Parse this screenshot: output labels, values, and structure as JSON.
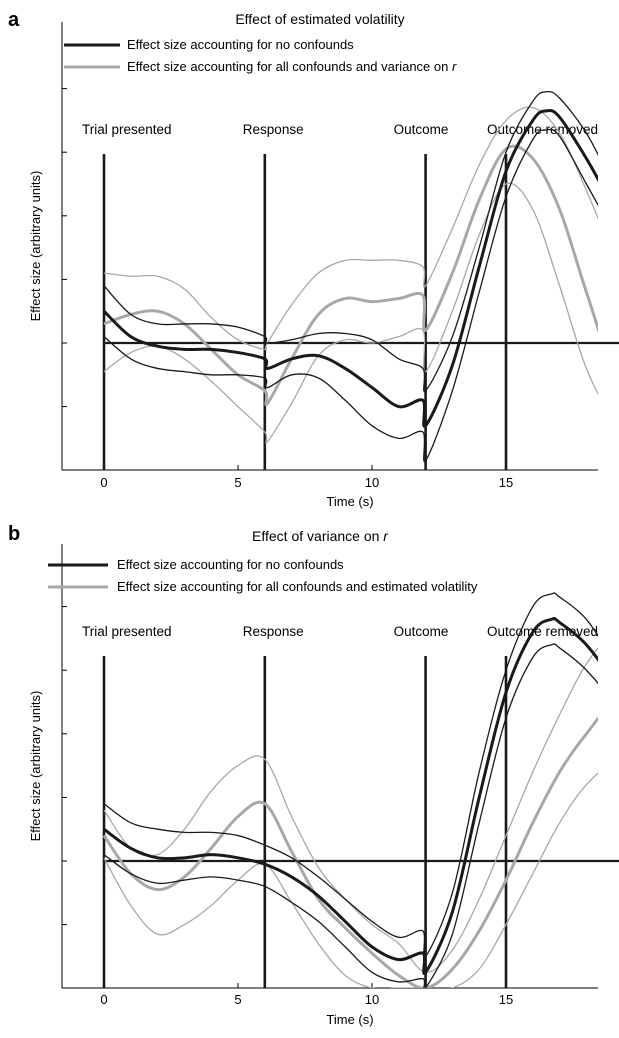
{
  "chart_data": [
    {
      "panel": "a",
      "type": "line",
      "title": "Effect of estimated volatility",
      "xlabel": "Time (s)",
      "ylabel": "Effect size (arbitrary units)",
      "xlim": [
        -1.2,
        23
      ],
      "ylim": [
        -4,
        10
      ],
      "xticks": [
        0,
        5,
        10,
        15,
        20
      ],
      "yticks": [
        -2,
        0,
        2,
        4,
        6,
        8
      ],
      "legend": [
        {
          "label": "Effect size accounting for no confounds",
          "color": "#1a1a1a"
        },
        {
          "label_prefix": "Effect size accounting for all confounds and variance on ",
          "label_var": "r",
          "color": "#a8a8a8"
        }
      ],
      "baseline_y": 0,
      "events": [
        {
          "label": "Trial presented",
          "x": 0
        },
        {
          "label": "Response",
          "x": 6
        },
        {
          "label": "Outcome",
          "x": 12
        },
        {
          "label": "Outcome removed",
          "x": 15
        }
      ],
      "series": [
        {
          "role": "dark-mean",
          "color": "#1a1a1a",
          "x": [
            0,
            1,
            2,
            3,
            4,
            5,
            6,
            6.1,
            7,
            8,
            9,
            10,
            11,
            11.9,
            12,
            13,
            14,
            15,
            16,
            16.5,
            17,
            18,
            19,
            20,
            20.8
          ],
          "y": [
            1.0,
            0.2,
            -0.1,
            -0.2,
            -0.2,
            -0.3,
            -0.5,
            -0.8,
            -0.5,
            -0.4,
            -0.8,
            -1.4,
            -2.0,
            -1.8,
            -2.6,
            -0.7,
            2.4,
            5.4,
            7.0,
            7.3,
            7.1,
            5.8,
            4.3,
            2.9,
            1.0
          ]
        },
        {
          "role": "dark-upper",
          "color": "#1a1a1a",
          "x": [
            0,
            1,
            2,
            3,
            4,
            5,
            6,
            6.1,
            7,
            8,
            9,
            10,
            11,
            11.9,
            12,
            13,
            14,
            15,
            16,
            16.5,
            17,
            18,
            19,
            20,
            20.8
          ],
          "y": [
            1.8,
            0.9,
            0.6,
            0.6,
            0.6,
            0.5,
            0.2,
            0.0,
            0.1,
            0.3,
            0.3,
            0.1,
            -0.5,
            -0.8,
            -1.5,
            0.2,
            3.0,
            6.0,
            7.6,
            7.9,
            7.7,
            6.6,
            5.0,
            3.6,
            2.0
          ]
        },
        {
          "role": "dark-lower",
          "color": "#1a1a1a",
          "x": [
            0,
            1,
            2,
            3,
            4,
            5,
            6,
            6.1,
            7,
            8,
            9,
            10,
            11,
            11.9,
            12,
            13,
            14,
            15,
            16,
            16.5,
            17,
            18,
            19,
            20,
            20.8
          ],
          "y": [
            0.2,
            -0.5,
            -0.8,
            -0.9,
            -1.0,
            -1.0,
            -1.1,
            -1.4,
            -1.0,
            -1.1,
            -1.8,
            -2.6,
            -3.0,
            -2.8,
            -3.7,
            -1.5,
            1.6,
            4.6,
            6.4,
            6.7,
            6.5,
            5.0,
            3.5,
            2.1,
            0.1
          ]
        },
        {
          "role": "gray-mean",
          "color": "#a8a8a8",
          "x": [
            0,
            1,
            2,
            3,
            4,
            5,
            6,
            6.1,
            7,
            8,
            9,
            10,
            11,
            11.9,
            12,
            13,
            14,
            15,
            16,
            17,
            18,
            19,
            20,
            20.8
          ],
          "y": [
            0.6,
            0.9,
            1.0,
            0.6,
            -0.2,
            -1.0,
            -1.5,
            -1.9,
            -0.5,
            0.9,
            1.4,
            1.3,
            1.4,
            1.5,
            0.4,
            2.2,
            4.5,
            6.1,
            5.8,
            4.2,
            1.6,
            -0.8,
            -1.6,
            -1.7
          ]
        },
        {
          "role": "gray-upper",
          "color": "#a8a8a8",
          "x": [
            0,
            1,
            2,
            3,
            4,
            5,
            6,
            6.1,
            7,
            8,
            9,
            10,
            11,
            11.9,
            12,
            13,
            14,
            15,
            16,
            17,
            18,
            19,
            20,
            20.8
          ],
          "y": [
            2.2,
            2.1,
            2.1,
            1.7,
            0.8,
            0.1,
            -0.2,
            0.0,
            1.2,
            2.2,
            2.6,
            2.6,
            2.6,
            2.4,
            1.8,
            3.6,
            5.6,
            7.0,
            7.4,
            6.6,
            4.8,
            2.8,
            1.2,
            0.0
          ]
        },
        {
          "role": "gray-lower",
          "color": "#a8a8a8",
          "x": [
            0,
            1,
            2,
            3,
            4,
            5,
            6,
            6.1,
            7,
            8,
            9,
            10,
            11,
            11.9,
            12,
            13,
            14,
            15,
            16,
            17,
            18,
            19,
            20,
            20.8
          ],
          "y": [
            -0.9,
            -0.3,
            -0.1,
            -0.5,
            -1.2,
            -2.0,
            -2.8,
            -3.1,
            -1.9,
            -0.4,
            0.1,
            0.0,
            0.2,
            0.4,
            -0.9,
            1.0,
            3.4,
            5.0,
            4.2,
            1.8,
            -0.8,
            -2.4,
            -3.3,
            -3.4
          ]
        }
      ]
    },
    {
      "panel": "b",
      "type": "line",
      "title_prefix": "Effect of variance on ",
      "title_var": "r",
      "xlabel": "Time (s)",
      "ylabel": "Effect size (arbitrary units)",
      "xlim": [
        -1.2,
        23
      ],
      "ylim": [
        -4,
        10
      ],
      "xticks": [
        0,
        5,
        10,
        15,
        20
      ],
      "yticks": [
        -2,
        0,
        2,
        4,
        6,
        8
      ],
      "legend": [
        {
          "label": "Effect size accounting for no confounds",
          "color": "#1a1a1a"
        },
        {
          "label": "Effect size accounting for all confounds and estimated volatility",
          "color": "#a8a8a8"
        }
      ],
      "baseline_y": 0,
      "events": [
        {
          "label": "Trial presented",
          "x": 0
        },
        {
          "label": "Response",
          "x": 6
        },
        {
          "label": "Outcome",
          "x": 12
        },
        {
          "label": "Outcome removed",
          "x": 15
        }
      ],
      "series": [
        {
          "role": "dark-mean",
          "color": "#1a1a1a",
          "x": [
            0,
            1,
            2,
            3,
            4,
            5,
            6,
            7,
            8,
            9,
            10,
            11,
            11.9,
            12,
            13,
            14,
            15,
            16,
            16.7,
            17,
            18,
            19,
            20,
            20.7
          ],
          "y": [
            1.0,
            0.4,
            0.1,
            0.1,
            0.2,
            0.1,
            -0.1,
            -0.5,
            -1.1,
            -1.9,
            -2.7,
            -3.1,
            -2.9,
            -3.5,
            -1.6,
            2.0,
            5.3,
            7.2,
            7.6,
            7.5,
            6.8,
            5.6,
            3.9,
            2.5
          ]
        },
        {
          "role": "dark-upper",
          "color": "#1a1a1a",
          "x": [
            0,
            1,
            2,
            3,
            4,
            5,
            6,
            7,
            8,
            9,
            10,
            11,
            11.9,
            12,
            13,
            14,
            15,
            16,
            16.7,
            17,
            18,
            19,
            20,
            20.7
          ],
          "y": [
            1.8,
            1.2,
            1.0,
            0.9,
            0.9,
            0.8,
            0.5,
            0.1,
            -0.5,
            -1.2,
            -1.9,
            -2.4,
            -2.2,
            -3.0,
            -1.0,
            2.8,
            6.0,
            8.0,
            8.4,
            8.3,
            7.6,
            6.3,
            4.8,
            3.5
          ]
        },
        {
          "role": "dark-lower",
          "color": "#1a1a1a",
          "x": [
            0,
            1,
            2,
            3,
            4,
            5,
            6,
            7,
            8,
            9,
            10,
            11,
            11.9,
            12,
            13,
            14,
            15,
            16,
            16.7,
            17,
            18,
            19,
            20,
            20.7
          ],
          "y": [
            0.2,
            -0.4,
            -0.7,
            -0.6,
            -0.5,
            -0.6,
            -0.8,
            -1.3,
            -1.9,
            -2.7,
            -3.5,
            -3.8,
            -3.7,
            -4.0,
            -2.3,
            1.2,
            4.5,
            6.4,
            6.8,
            6.7,
            6.0,
            4.9,
            3.0,
            1.5
          ]
        },
        {
          "role": "gray-mean",
          "color": "#a8a8a8",
          "x": [
            0,
            1,
            2,
            3,
            4,
            5,
            6,
            7,
            8,
            9,
            10,
            11,
            12,
            13,
            14,
            15,
            16,
            17,
            18,
            19,
            20,
            20.7
          ],
          "y": [
            0.8,
            -0.4,
            -0.9,
            -0.5,
            0.4,
            1.4,
            1.8,
            0.3,
            -1.2,
            -2.1,
            -2.9,
            -3.6,
            -4.0,
            -3.4,
            -2.2,
            -0.6,
            1.2,
            2.8,
            4.0,
            4.9,
            4.5,
            3.9
          ]
        },
        {
          "role": "gray-upper",
          "color": "#a8a8a8",
          "x": [
            0,
            1,
            2,
            3,
            4,
            5,
            6,
            7,
            8,
            9,
            10,
            11,
            12,
            13,
            14,
            15,
            16,
            17,
            18,
            19,
            20,
            20.7
          ],
          "y": [
            1.6,
            0.4,
            0.2,
            1.0,
            2.2,
            3.0,
            3.2,
            1.4,
            -0.2,
            -1.2,
            -2.0,
            -2.6,
            -3.5,
            -2.8,
            -1.2,
            0.8,
            2.8,
            4.6,
            6.2,
            7.1,
            6.9,
            6.2
          ]
        },
        {
          "role": "gray-lower",
          "color": "#a8a8a8",
          "x": [
            0,
            1,
            2,
            3,
            4,
            5,
            6,
            7,
            8,
            9,
            10,
            11,
            12,
            13,
            14,
            15,
            16,
            17,
            18,
            19,
            20,
            20.7
          ],
          "y": [
            0.1,
            -1.4,
            -2.3,
            -2.0,
            -1.4,
            -0.6,
            -0.1,
            -1.3,
            -2.6,
            -3.6,
            -4.0,
            -4.0,
            -4.0,
            -4.0,
            -3.4,
            -2.0,
            -0.4,
            1.2,
            2.4,
            3.0,
            2.5,
            1.8
          ]
        }
      ]
    }
  ]
}
